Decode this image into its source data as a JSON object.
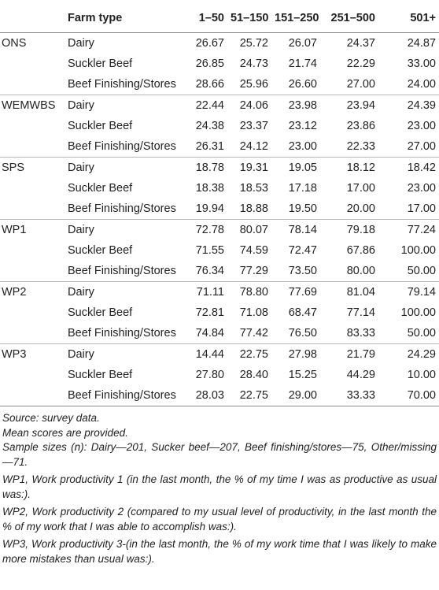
{
  "table": {
    "headers": [
      "",
      "Farm type",
      "1–50",
      "51–150",
      "151–250",
      "251–500",
      "501+"
    ],
    "groups": [
      {
        "measure": "ONS",
        "rows": [
          {
            "farm": "Dairy",
            "values": [
              "26.67",
              "25.72",
              "26.07",
              "24.37",
              "24.87"
            ]
          },
          {
            "farm": "Suckler Beef",
            "values": [
              "26.85",
              "24.73",
              "21.74",
              "22.29",
              "33.00"
            ]
          },
          {
            "farm": "Beef Finishing/Stores",
            "values": [
              "28.66",
              "25.96",
              "26.60",
              "27.00",
              "24.00"
            ]
          }
        ]
      },
      {
        "measure": "WEMWBS",
        "rows": [
          {
            "farm": "Dairy",
            "values": [
              "22.44",
              "24.06",
              "23.98",
              "23.94",
              "24.39"
            ]
          },
          {
            "farm": "Suckler Beef",
            "values": [
              "24.38",
              "23.37",
              "23.12",
              "23.86",
              "23.00"
            ]
          },
          {
            "farm": "Beef Finishing/Stores",
            "values": [
              "26.31",
              "24.12",
              "23.00",
              "22.33",
              "27.00"
            ]
          }
        ]
      },
      {
        "measure": "SPS",
        "rows": [
          {
            "farm": "Dairy",
            "values": [
              "18.78",
              "19.31",
              "19.05",
              "18.12",
              "18.42"
            ]
          },
          {
            "farm": "Suckler Beef",
            "values": [
              "18.38",
              "18.53",
              "17.18",
              "17.00",
              "23.00"
            ]
          },
          {
            "farm": "Beef Finishing/Stores",
            "values": [
              "19.94",
              "18.88",
              "19.50",
              "20.00",
              "17.00"
            ]
          }
        ]
      },
      {
        "measure": "WP1",
        "rows": [
          {
            "farm": "Dairy",
            "values": [
              "72.78",
              "80.07",
              "78.14",
              "79.18",
              "77.24"
            ]
          },
          {
            "farm": "Suckler Beef",
            "values": [
              "71.55",
              "74.59",
              "72.47",
              "67.86",
              "100.00"
            ]
          },
          {
            "farm": "Beef Finishing/Stores",
            "values": [
              "76.34",
              "77.29",
              "73.50",
              "80.00",
              "50.00"
            ]
          }
        ]
      },
      {
        "measure": "WP2",
        "rows": [
          {
            "farm": "Dairy",
            "values": [
              "71.11",
              "78.80",
              "77.69",
              "81.04",
              "79.14"
            ]
          },
          {
            "farm": "Suckler Beef",
            "values": [
              "72.81",
              "71.08",
              "68.47",
              "77.14",
              "100.00"
            ]
          },
          {
            "farm": "Beef Finishing/Stores",
            "values": [
              "74.84",
              "77.42",
              "76.50",
              "83.33",
              "50.00"
            ]
          }
        ]
      },
      {
        "measure": "WP3",
        "rows": [
          {
            "farm": "Dairy",
            "values": [
              "14.44",
              "22.75",
              "27.98",
              "21.79",
              "24.29"
            ]
          },
          {
            "farm": "Suckler Beef",
            "values": [
              "27.80",
              "28.40",
              "15.25",
              "44.29",
              "10.00"
            ]
          },
          {
            "farm": "Beef Finishing/Stores",
            "values": [
              "28.03",
              "22.75",
              "29.00",
              "33.33",
              "70.00"
            ]
          }
        ]
      }
    ]
  },
  "notes": {
    "source": "Source: survey data.",
    "mean": "Mean scores are provided.",
    "sample": "Sample sizes (n): Dairy—201, Sucker beef—207, Beef finishing/stores—75, Other/missing—71.",
    "wp1": "WP1, Work productivity 1 (in the last month, the % of my time I was as productive as usual was:).",
    "wp2": "WP2, Work productivity 2 (compared to my usual level of productivity, in the last month the % of my work that I was able to accomplish was:).",
    "wp3": "WP3, Work productivity 3-(in the last month, the % of my work time that I was likely to make more mistakes than usual was:)."
  }
}
